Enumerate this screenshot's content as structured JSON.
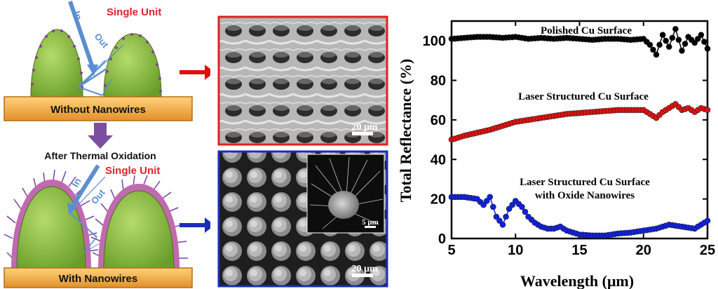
{
  "schematic": {
    "top_label": "Single Unit",
    "bottom_label": "Single Unit",
    "in_label_top": "In",
    "out_label_top": "Out",
    "in_label_bottom": "In",
    "out_label_bottom": "Out",
    "base_top": "Without Nanowires",
    "process": "After Thermal Oxidation",
    "base_bottom": "With Nanowires",
    "colors": {
      "dome": "#8dc63f",
      "base": "#f5a623",
      "arrow_light": "#5b9bd5",
      "label": "#e0202a",
      "process_arrow": "#7b4fa0"
    }
  },
  "sem": {
    "scale_top": "20 μm",
    "scale_bottom": "20 μm",
    "scale_inset": "5 μm",
    "colors": {
      "top_border": "#e02020",
      "bottom_border": "#1a2eb8"
    }
  },
  "chart_data": {
    "type": "line",
    "xlabel": "Wavelength (μm)",
    "ylabel": "Total Reflectance (%)",
    "xlim": [
      5,
      25
    ],
    "ylim": [
      0,
      110
    ],
    "xticks": [
      5,
      10,
      15,
      20,
      25
    ],
    "yticks": [
      0,
      20,
      40,
      60,
      80,
      100
    ],
    "series": [
      {
        "name": "Polished Cu Surface",
        "color": "#000000",
        "x": [
          5,
          6,
          7,
          8,
          9,
          10,
          11,
          12,
          13,
          14,
          15,
          16,
          17,
          18,
          19,
          20,
          20.5,
          21,
          21.5,
          22,
          22.5,
          23,
          23.5,
          24,
          24.5,
          25
        ],
        "y": [
          101,
          101.5,
          102,
          102,
          101.5,
          102,
          101,
          101.5,
          101,
          101.5,
          101,
          100.5,
          101,
          101,
          100.5,
          101,
          98,
          93,
          103,
          97,
          106,
          95,
          102,
          99,
          103,
          96
        ]
      },
      {
        "name": "Laser Structured Cu Surface",
        "color": "#e01010",
        "x": [
          5,
          6,
          7,
          8,
          9,
          10,
          11,
          12,
          13,
          14,
          15,
          16,
          17,
          18,
          19,
          20,
          20.5,
          21,
          21.5,
          22,
          22.5,
          23,
          23.5,
          24,
          24.5,
          25
        ],
        "y": [
          50,
          52,
          53.5,
          55,
          57,
          59,
          60,
          61,
          62,
          63,
          63.5,
          64,
          64.5,
          65,
          65,
          65,
          63,
          61,
          64,
          66,
          68,
          65,
          66,
          64,
          66,
          65
        ]
      },
      {
        "name": "Laser Structured Cu Surface with Oxide Nanowires",
        "color": "#1020e0",
        "x": [
          5,
          6,
          7,
          7.5,
          8,
          8.5,
          9,
          9.5,
          10,
          10.5,
          11,
          11.5,
          12,
          12.5,
          13,
          13.5,
          14,
          15,
          16,
          17,
          18,
          19,
          20,
          21,
          22,
          23,
          24,
          25
        ],
        "y": [
          21,
          21,
          20,
          17,
          21,
          11,
          7,
          15,
          19,
          16,
          11,
          8,
          6,
          5,
          5,
          6,
          4,
          2,
          1.5,
          1.5,
          2.5,
          3,
          4,
          5,
          7,
          6,
          5,
          9
        ]
      }
    ],
    "annotations": [
      "Polished Cu Surface",
      "Laser Structured Cu Surface",
      "Laser Structured Cu Surface",
      "with Oxide Nanowires"
    ]
  }
}
